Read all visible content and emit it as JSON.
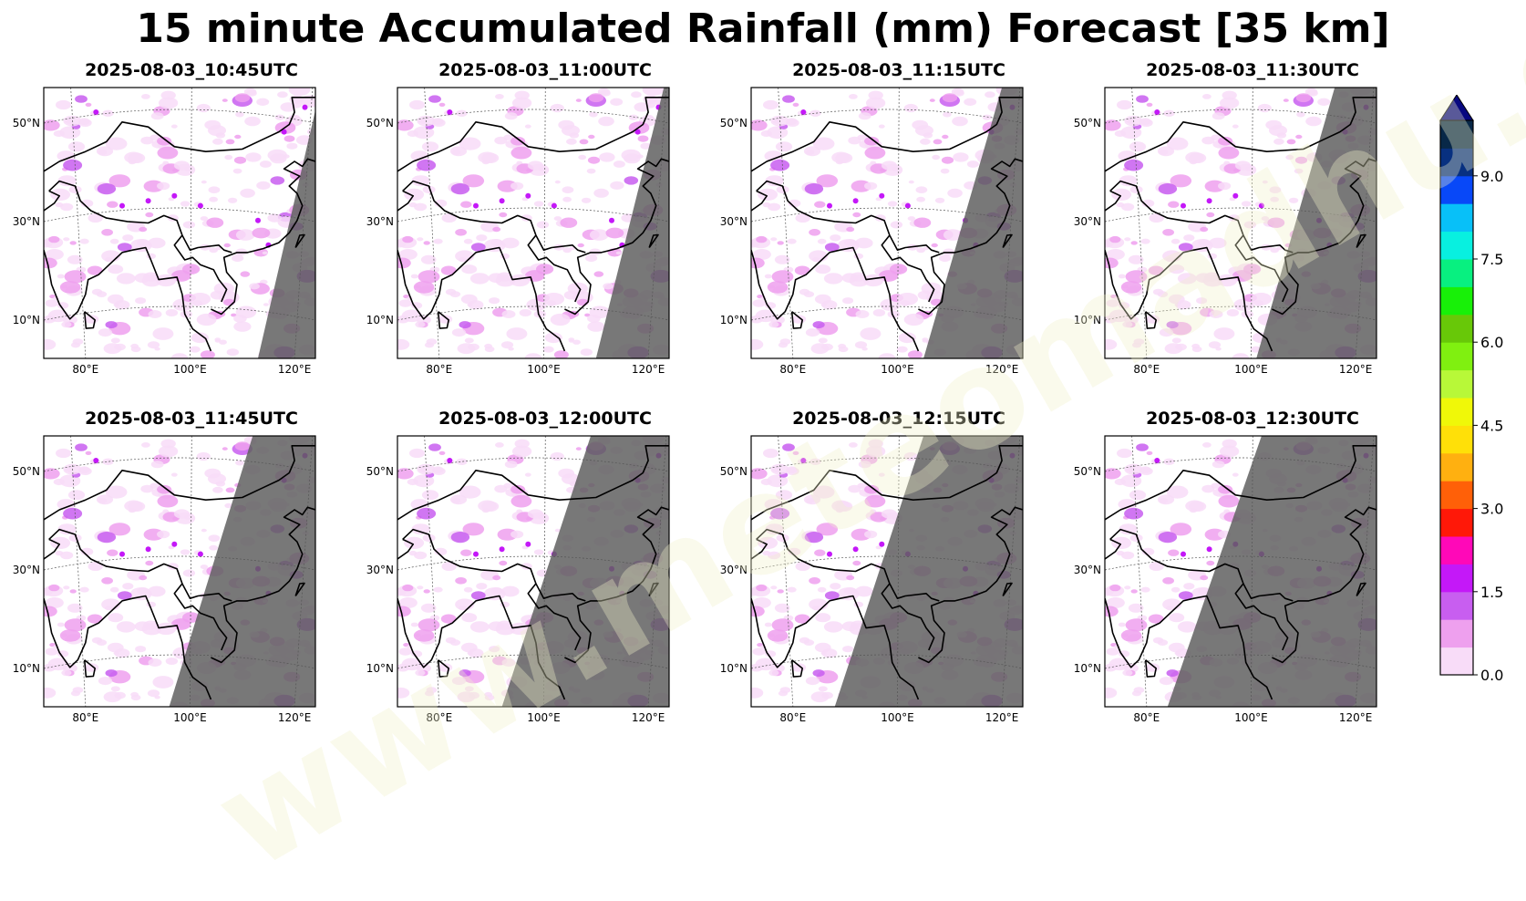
{
  "title": "15 minute Accumulated Rainfall (mm) Forecast [35 km]",
  "watermark": "www.meteomadhu.com",
  "chart_data": {
    "type": "heatmap",
    "panels": [
      {
        "title": "2025-08-03_10:45UTC",
        "night_edge_top_lon": 125,
        "night_edge_bottom_lon": 113
      },
      {
        "title": "2025-08-03_11:00UTC",
        "night_edge_top_lon": 123,
        "night_edge_bottom_lon": 110
      },
      {
        "title": "2025-08-03_11:15UTC",
        "night_edge_top_lon": 120,
        "night_edge_bottom_lon": 105
      },
      {
        "title": "2025-08-03_11:30UTC",
        "night_edge_top_lon": 116,
        "night_edge_bottom_lon": 101
      },
      {
        "title": "2025-08-03_11:45UTC",
        "night_edge_top_lon": 112,
        "night_edge_bottom_lon": 96
      },
      {
        "title": "2025-08-03_12:00UTC",
        "night_edge_top_lon": 109,
        "night_edge_bottom_lon": 92
      },
      {
        "title": "2025-08-03_12:15UTC",
        "night_edge_top_lon": 105,
        "night_edge_bottom_lon": 88
      },
      {
        "title": "2025-08-03_12:30UTC",
        "night_edge_top_lon": 102,
        "night_edge_bottom_lon": 84
      }
    ],
    "lat_ticks": [
      {
        "value": 50,
        "label": "50°N"
      },
      {
        "value": 30,
        "label": "30°N"
      },
      {
        "value": 10,
        "label": "10°N"
      }
    ],
    "lon_ticks": [
      {
        "value": 80,
        "label": "80°E"
      },
      {
        "value": 100,
        "label": "100°E"
      },
      {
        "value": 120,
        "label": "120°E"
      }
    ],
    "lon_range": [
      72,
      124
    ],
    "lat_range": [
      0,
      55
    ],
    "colorbar": {
      "levels": [
        0.0,
        0.5,
        1.0,
        1.5,
        2.0,
        2.5,
        3.0,
        3.5,
        4.0,
        4.5,
        5.0,
        5.5,
        6.0,
        6.5,
        7.0,
        7.5,
        8.0,
        8.5,
        9.0,
        9.5,
        10.0
      ],
      "colors": [
        "#f8dcf8",
        "#eea0ee",
        "#c85ef0",
        "#c418f8",
        "#ff08b8",
        "#ff1808",
        "#ff6008",
        "#ffb010",
        "#ffe008",
        "#f0f808",
        "#b8f838",
        "#80f010",
        "#68c808",
        "#18f008",
        "#08f080",
        "#08f0e0",
        "#08c0f8",
        "#0848f8",
        "#083080",
        "#082848"
      ],
      "extend_color": "#080880",
      "tick_labels": [
        {
          "value": 0.0,
          "label": "0.0"
        },
        {
          "value": 1.5,
          "label": "1.5"
        },
        {
          "value": 3.0,
          "label": "3.0"
        },
        {
          "value": 4.5,
          "label": "4.5"
        },
        {
          "value": 6.0,
          "label": "6.0"
        },
        {
          "value": 7.5,
          "label": "7.5"
        },
        {
          "value": 9.0,
          "label": "9.0"
        }
      ]
    }
  }
}
